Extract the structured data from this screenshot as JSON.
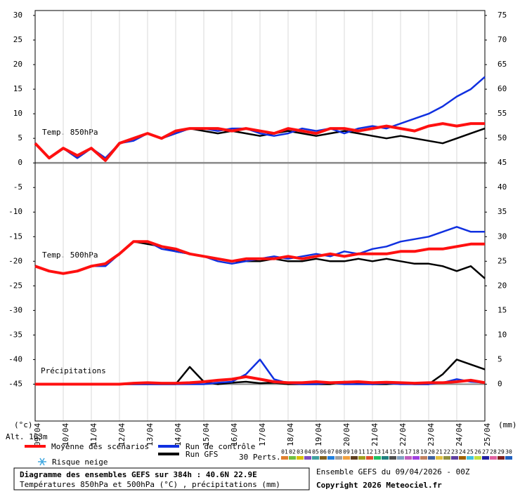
{
  "chart_data": {
    "type": "line",
    "annotations": [
      "Temp. 850hPa",
      "Temp. 500hPa",
      "Précipitations"
    ],
    "y_unit": "(°c)",
    "y2_unit": "(mm)",
    "altitude": "Alt. 163m",
    "xlim": [
      0,
      16
    ],
    "xticks": [
      {
        "value": 0,
        "label": "09/04"
      },
      {
        "value": 1,
        "label": "10/04"
      },
      {
        "value": 2,
        "label": "11/04"
      },
      {
        "value": 3,
        "label": "12/04"
      },
      {
        "value": 4,
        "label": "13/04"
      },
      {
        "value": 5,
        "label": "14/04"
      },
      {
        "value": 6,
        "label": "15/04"
      },
      {
        "value": 7,
        "label": "16/04"
      },
      {
        "value": 8,
        "label": "17/04"
      },
      {
        "value": 9,
        "label": "18/04"
      },
      {
        "value": 10,
        "label": "19/04"
      },
      {
        "value": 11,
        "label": "20/04"
      },
      {
        "value": 12,
        "label": "21/04"
      },
      {
        "value": 13,
        "label": "22/04"
      },
      {
        "value": 14,
        "label": "23/04"
      },
      {
        "value": 15,
        "label": "24/04"
      },
      {
        "value": 16,
        "label": "25/04"
      }
    ],
    "ylim": [
      -52.5,
      31
    ],
    "yticks": [
      -45,
      -40,
      -35,
      -30,
      -25,
      -20,
      -15,
      -10,
      -5,
      0,
      5,
      10,
      15,
      20,
      25,
      30
    ],
    "y2lim": [
      -7.5,
      76
    ],
    "y2ticks": [
      0,
      5,
      10,
      15,
      20,
      25,
      30,
      35,
      40,
      45,
      50,
      55,
      60,
      65,
      70,
      75
    ],
    "x": [
      0,
      0.5,
      1,
      1.5,
      2,
      2.5,
      3,
      3.5,
      4,
      4.5,
      5,
      5.5,
      6,
      6.5,
      7,
      7.5,
      8,
      8.5,
      9,
      9.5,
      10,
      10.5,
      11,
      11.5,
      12,
      12.5,
      13,
      13.5,
      14,
      14.5,
      15,
      15.5,
      16
    ],
    "series": [
      {
        "name": "Run GFS",
        "color": "#000000",
        "temp850": [
          4,
          1,
          3,
          1,
          3,
          0.5,
          4,
          5,
          6,
          5,
          6,
          7,
          6.5,
          6,
          6.5,
          6,
          5.5,
          6,
          6.5,
          6,
          5.5,
          6,
          6.5,
          6,
          5.5,
          5,
          5.5,
          5,
          4.5,
          4,
          5,
          6,
          7
        ],
        "temp500": [
          -21,
          -22,
          -22.5,
          -22,
          -21,
          -20.5,
          -18.5,
          -16,
          -16.5,
          -17,
          -18,
          -18.5,
          -19,
          -19.5,
          -20,
          -20,
          -20,
          -19.5,
          -20,
          -20,
          -19.5,
          -20,
          -20,
          -19.5,
          -20,
          -19.5,
          -20,
          -20.5,
          -20.5,
          -21,
          -22,
          -21,
          -23.5
        ],
        "precip": [
          0,
          0,
          0,
          0,
          0,
          0,
          0,
          0,
          0,
          0,
          0,
          3.5,
          0.5,
          0,
          0.3,
          0.5,
          0.2,
          0.3,
          0,
          0,
          0,
          0,
          0.5,
          0.3,
          0,
          0,
          0.2,
          0,
          0,
          2,
          5,
          4,
          3
        ]
      },
      {
        "name": "Run de contrôle",
        "color": "#1030e0",
        "temp850": [
          4,
          1,
          3,
          1,
          3,
          1,
          4,
          4.5,
          6,
          5,
          6,
          7,
          7,
          6.5,
          7,
          7,
          6,
          5.5,
          6,
          7,
          6.5,
          7,
          6,
          7,
          7.5,
          7,
          8,
          9,
          10,
          11.5,
          13.5,
          15,
          17.5
        ],
        "temp500": [
          -21,
          -22,
          -22.5,
          -22,
          -21,
          -21,
          -18.5,
          -16,
          -16,
          -17.5,
          -18,
          -18.5,
          -19,
          -20,
          -20.5,
          -20,
          -19.5,
          -19,
          -19.5,
          -19,
          -18.5,
          -19,
          -18,
          -18.5,
          -17.5,
          -17,
          -16,
          -15.5,
          -15,
          -14,
          -13,
          -14,
          -14
        ],
        "precip": [
          0,
          0,
          0,
          0,
          0,
          0,
          0,
          0,
          0,
          0,
          0,
          0,
          0,
          0.3,
          0.5,
          2,
          5,
          1,
          0.2,
          0,
          0,
          0.3,
          0,
          0,
          0,
          0.2,
          0,
          0,
          0,
          0.3,
          1,
          0.5,
          0.3
        ]
      },
      {
        "name": "Moyenne des scénarios",
        "color": "#ff1010",
        "temp850": [
          4,
          1,
          3,
          1.5,
          3,
          0.5,
          4,
          5,
          6,
          5,
          6.5,
          7,
          7,
          7,
          6.5,
          7,
          6.5,
          6,
          7,
          6.5,
          6,
          7,
          7,
          6.5,
          7,
          7.5,
          7,
          6.5,
          7.5,
          8,
          7.5,
          8,
          8
        ],
        "temp500": [
          -21,
          -22,
          -22.5,
          -22,
          -21,
          -20.5,
          -18.5,
          -16,
          -16,
          -17,
          -17.5,
          -18.5,
          -19,
          -19.5,
          -20,
          -19.5,
          -19.5,
          -19.5,
          -19,
          -19.5,
          -19,
          -18.5,
          -19,
          -18.5,
          -18.5,
          -18.5,
          -18,
          -18,
          -17.5,
          -17.5,
          -17,
          -16.5,
          -16.5
        ],
        "precip": [
          0,
          0,
          0,
          0,
          0,
          0,
          0,
          0.2,
          0.3,
          0.2,
          0.2,
          0.3,
          0.5,
          0.8,
          1,
          1.5,
          1,
          0.5,
          0.3,
          0.3,
          0.5,
          0.3,
          0.4,
          0.5,
          0.3,
          0.4,
          0.3,
          0.2,
          0.3,
          0.3,
          0.5,
          0.8,
          0.3
        ]
      }
    ],
    "snow_label": "Risque neige",
    "perturbations": {
      "label": "30 Perts.",
      "members": [
        {
          "name": "01",
          "color": "#e08030"
        },
        {
          "name": "02",
          "color": "#70c040"
        },
        {
          "name": "03",
          "color": "#d8c000"
        },
        {
          "name": "04",
          "color": "#8050c0"
        },
        {
          "name": "05",
          "color": "#40a0a0"
        },
        {
          "name": "06",
          "color": "#806020"
        },
        {
          "name": "07",
          "color": "#2080e0"
        },
        {
          "name": "08",
          "color": "#a0a0a0"
        },
        {
          "name": "09",
          "color": "#f0a040"
        },
        {
          "name": "10",
          "color": "#604020"
        },
        {
          "name": "11",
          "color": "#a0a020"
        },
        {
          "name": "12",
          "color": "#e05030"
        },
        {
          "name": "13",
          "color": "#20c060"
        },
        {
          "name": "14",
          "color": "#208080"
        },
        {
          "name": "15",
          "color": "#505050"
        },
        {
          "name": "16",
          "color": "#80a0c0"
        },
        {
          "name": "17",
          "color": "#c060c0"
        },
        {
          "name": "18",
          "color": "#a040e0"
        },
        {
          "name": "19",
          "color": "#c08060"
        },
        {
          "name": "20",
          "color": "#4060a0"
        },
        {
          "name": "21",
          "color": "#e0c040"
        },
        {
          "name": "22",
          "color": "#909040"
        },
        {
          "name": "23",
          "color": "#6040a0"
        },
        {
          "name": "24",
          "color": "#a06000"
        },
        {
          "name": "25",
          "color": "#40c0e0"
        },
        {
          "name": "26",
          "color": "#c0e040"
        },
        {
          "name": "27",
          "color": "#2020a0"
        },
        {
          "name": "28",
          "color": "#e060a0"
        },
        {
          "name": "29",
          "color": "#802020"
        },
        {
          "name": "30",
          "color": "#2060c0"
        }
      ]
    },
    "footer_title": "Diagramme des ensembles GEFS sur 384h : 40.6N 22.9E",
    "footer_subtitle": "Températures 850hPa et 500hPa (°C) , précipitations (mm)",
    "run_info": "Ensemble GEFS du 09/04/2026 - 00Z",
    "copyright": "Copyright 2026 Meteociel.fr"
  }
}
